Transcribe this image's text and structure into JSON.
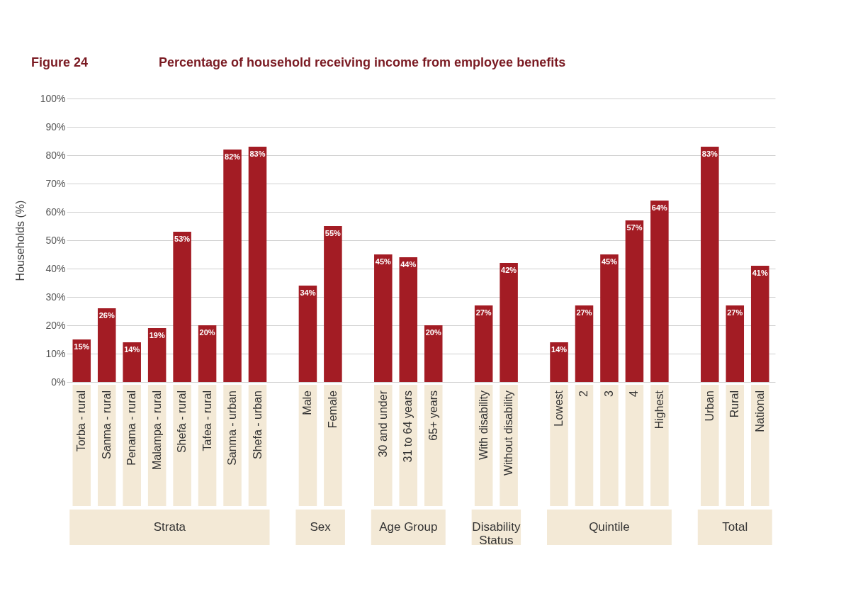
{
  "chart_data": {
    "type": "bar",
    "title": "Percentage of household receiving income from employee benefits",
    "subtitle": "Figure 24",
    "ylabel": "Households (%)",
    "categories": [
      "Torba - rural",
      "Sanma - rural",
      "Penama - rural",
      "Malampa - rural",
      "Shefa - rural",
      "Tafea - rural",
      "Sanma - urban",
      "Shefa - urban",
      null,
      "Male",
      "Female",
      null,
      "30 and under",
      "31 to 64 years",
      "65+ years",
      null,
      "With disability",
      "Without disability",
      null,
      "Lowest",
      "2",
      "3",
      "4",
      "Highest",
      null,
      "Urban",
      "Rural",
      "National"
    ],
    "values": [
      15,
      26,
      14,
      19,
      53,
      20,
      82,
      83,
      null,
      34,
      55,
      null,
      45,
      44,
      20,
      null,
      27,
      42,
      null,
      14,
      27,
      45,
      57,
      64,
      null,
      83,
      27,
      41
    ],
    "value_labels": [
      "15%",
      "26%",
      "14%",
      "19%",
      "53%",
      "20%",
      "82%",
      "83%",
      null,
      "34%",
      "55%",
      null,
      "45%",
      "44%",
      "20%",
      null,
      "27%",
      "42%",
      null,
      "14%",
      "27%",
      "45%",
      "57%",
      "64%",
      null,
      "83%",
      "27%",
      "41%"
    ],
    "color": "#a31c24",
    "annotations": [
      "Strata",
      "Sex",
      "Age Group",
      "Disability\nStatus",
      "Quintile",
      "Total"
    ],
    "ylim": [
      0,
      100
    ],
    "yticks": [
      {
        "value": 0,
        "label": "0%"
      },
      {
        "value": 10,
        "label": "10%"
      },
      {
        "value": 20,
        "label": "20%"
      },
      {
        "value": 30,
        "label": "30%"
      },
      {
        "value": 40,
        "label": "40%"
      },
      {
        "value": 50,
        "label": "50%"
      },
      {
        "value": 60,
        "label": "60%"
      },
      {
        "value": 70,
        "label": "70%"
      },
      {
        "value": 80,
        "label": "80%"
      },
      {
        "value": 90,
        "label": "90%"
      },
      {
        "value": 100,
        "label": "100%"
      }
    ],
    "grid": "y"
  }
}
